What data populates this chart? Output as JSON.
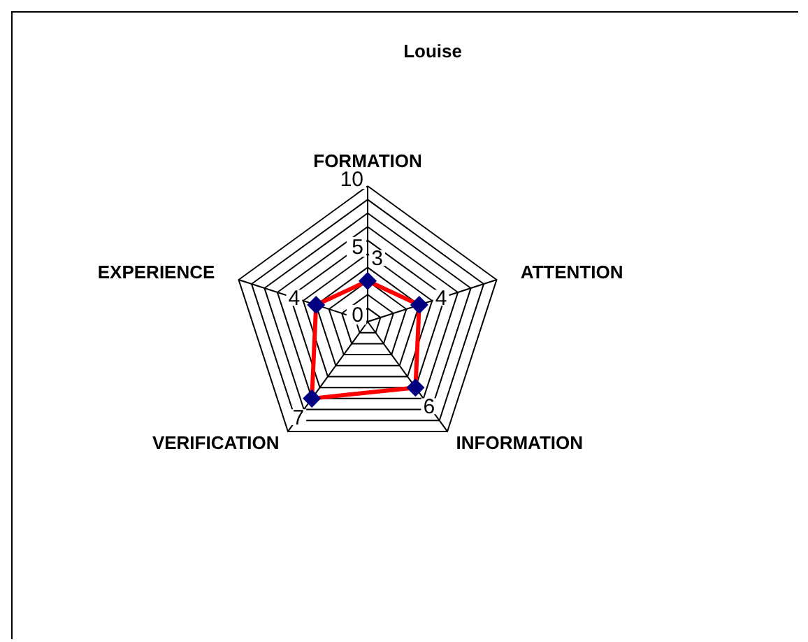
{
  "chart_data": {
    "type": "radar",
    "title": "Louise",
    "categories": [
      "FORMATION",
      "ATTENTION",
      "INFORMATION",
      "VERIFICATION",
      "EXPERIENCE"
    ],
    "series": [
      {
        "color": "#ff0000",
        "values": [
          3,
          4,
          6,
          7,
          4
        ]
      }
    ],
    "ylim": [
      0,
      10
    ],
    "yticks": [
      0,
      5,
      10
    ],
    "grid": true,
    "marker": "diamond",
    "data_labels": true
  }
}
